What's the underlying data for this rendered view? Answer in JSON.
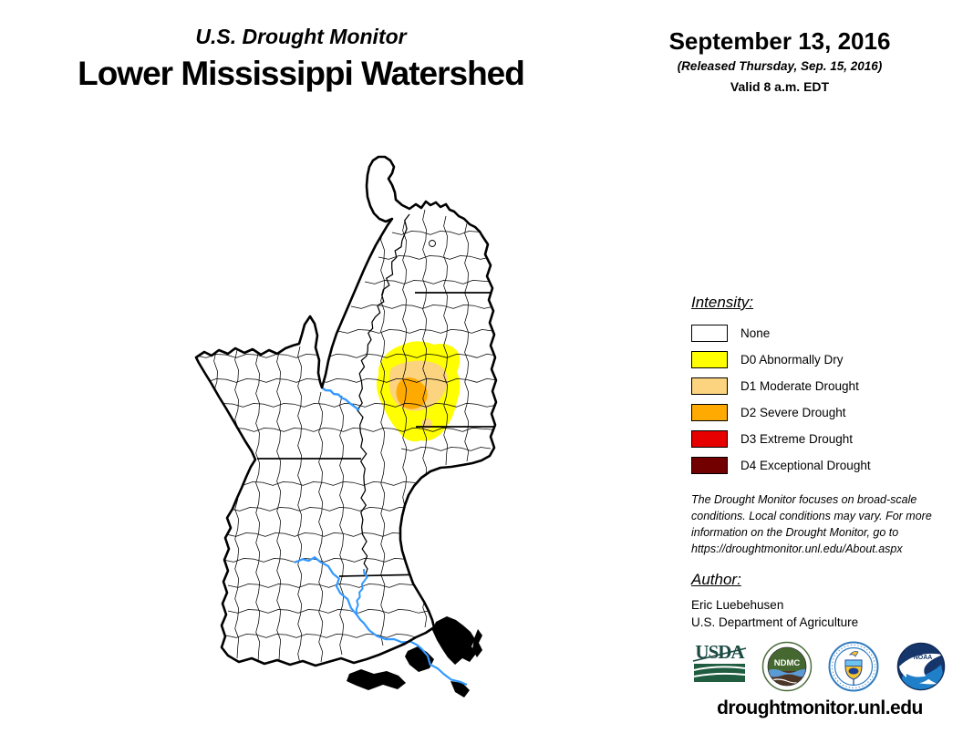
{
  "header": {
    "supertitle": "U.S. Drought Monitor",
    "title": "Lower Mississippi Watershed",
    "date": "September 13, 2016",
    "released": "(Released Thursday, Sep. 15, 2016)",
    "valid": "Valid 8 a.m. EDT"
  },
  "legend": {
    "heading": "Intensity:",
    "items": [
      {
        "label": "None",
        "color": "#FFFFFF"
      },
      {
        "label": "D0 Abnormally Dry",
        "color": "#FFFF00"
      },
      {
        "label": "D1 Moderate Drought",
        "color": "#FCD37F"
      },
      {
        "label": "D2 Severe Drought",
        "color": "#FFAA00"
      },
      {
        "label": "D3 Extreme Drought",
        "color": "#E60000"
      },
      {
        "label": "D4 Exceptional Drought",
        "color": "#730000"
      }
    ]
  },
  "disclaimer": {
    "lines": [
      "The Drought Monitor focuses on broad-scale",
      "conditions. Local conditions may vary. For more",
      "information on the Drought Monitor, go to",
      "https://droughtmonitor.unl.edu/About.aspx"
    ]
  },
  "author": {
    "heading": "Author:",
    "name": "Eric Luebehusen",
    "org": "U.S. Department of Agriculture"
  },
  "footer": {
    "url": "droughtmonitor.unl.edu"
  },
  "logos": {
    "usda": "USDA",
    "ndmc": "NDMC",
    "noaa": "NOAA"
  },
  "map": {
    "colors": {
      "none": "#FFFFFF",
      "d0": "#FFFF00",
      "d1": "#FCD37F",
      "d2": "#FFAA00",
      "d3": "#E60000",
      "d4": "#730000",
      "river": "#3399FF",
      "boundary": "#000000"
    }
  }
}
